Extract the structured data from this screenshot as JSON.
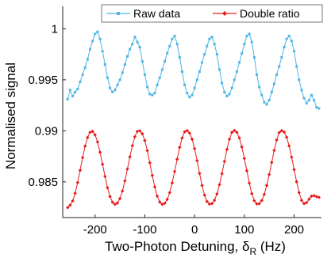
{
  "chart_data": {
    "type": "line",
    "title": "",
    "xlabel": "Two-Photon Detuning, δ",
    "xlabel_subscript": "R",
    "xlabel_unit": " (Hz)",
    "ylabel": "Normalised signal",
    "xlim": [
      -265,
      255
    ],
    "ylim": [
      0.9815,
      1.0022
    ],
    "xticks": [
      -200,
      -100,
      0,
      100,
      200
    ],
    "xtick_labels": [
      "-200",
      "-100",
      "0",
      "100",
      "200"
    ],
    "yticks": [
      0.985,
      0.99,
      0.995,
      1.0
    ],
    "ytick_labels": [
      "0.985",
      "0.99",
      "0.995",
      "1"
    ],
    "grid": false,
    "legend_position": "top-right",
    "x": [
      -255,
      -250,
      -245,
      -240,
      -235,
      -230,
      -225,
      -220,
      -215,
      -210,
      -205,
      -200,
      -195,
      -190,
      -185,
      -180,
      -175,
      -170,
      -165,
      -160,
      -155,
      -150,
      -145,
      -140,
      -135,
      -130,
      -125,
      -120,
      -115,
      -110,
      -105,
      -100,
      -95,
      -90,
      -85,
      -80,
      -75,
      -70,
      -65,
      -60,
      -55,
      -50,
      -45,
      -40,
      -35,
      -30,
      -25,
      -20,
      -15,
      -10,
      -5,
      0,
      5,
      10,
      15,
      20,
      25,
      30,
      35,
      40,
      45,
      50,
      55,
      60,
      65,
      70,
      75,
      80,
      85,
      90,
      95,
      100,
      105,
      110,
      115,
      120,
      125,
      130,
      135,
      140,
      145,
      150,
      155,
      160,
      165,
      170,
      175,
      180,
      185,
      190,
      195,
      200,
      205,
      210,
      215,
      220,
      225,
      230,
      235,
      240,
      245,
      250
    ],
    "series": [
      {
        "name": "Raw data",
        "color": "#4db6e6",
        "marker": "square",
        "values": [
          0.9931,
          0.994,
          0.9934,
          0.9938,
          0.9941,
          0.9948,
          0.9955,
          0.9962,
          0.997,
          0.998,
          0.9988,
          0.9995,
          0.9997,
          0.999,
          0.9978,
          0.9965,
          0.9952,
          0.9942,
          0.9938,
          0.994,
          0.9945,
          0.995,
          0.9957,
          0.9965,
          0.9973,
          0.998,
          0.9985,
          0.9992,
          0.9987,
          0.9982,
          0.9968,
          0.9955,
          0.9943,
          0.9936,
          0.9935,
          0.9937,
          0.9945,
          0.9952,
          0.996,
          0.9968,
          0.9976,
          0.9983,
          0.999,
          0.9993,
          0.9985,
          0.9972,
          0.9958,
          0.9945,
          0.9937,
          0.9933,
          0.9935,
          0.9942,
          0.995,
          0.9958,
          0.9967,
          0.9975,
          0.9983,
          0.999,
          0.9992,
          0.9985,
          0.9975,
          0.996,
          0.9947,
          0.9938,
          0.9934,
          0.9936,
          0.9942,
          0.995,
          0.9958,
          0.9967,
          0.9976,
          0.9985,
          0.9993,
          0.9995,
          0.9987,
          0.9972,
          0.9955,
          0.9943,
          0.9935,
          0.9928,
          0.9926,
          0.993,
          0.9938,
          0.9946,
          0.9955,
          0.9963,
          0.9972,
          0.9982,
          0.999,
          0.9993,
          0.9988,
          0.9978,
          0.9963,
          0.995,
          0.994,
          0.9932,
          0.9927,
          0.993,
          0.9935,
          0.993,
          0.9923,
          0.9922
        ]
      },
      {
        "name": "Double ratio",
        "color": "#e61b1b",
        "marker": "diamond",
        "values": [
          0.98248,
          0.98272,
          0.98313,
          0.98388,
          0.98493,
          0.98613,
          0.98738,
          0.9885,
          0.98935,
          0.98985,
          0.98995,
          0.98961,
          0.98891,
          0.98791,
          0.98673,
          0.98553,
          0.98443,
          0.98356,
          0.98301,
          0.9828,
          0.98293,
          0.98336,
          0.9841,
          0.9851,
          0.98625,
          0.98745,
          0.98855,
          0.98942,
          0.98995,
          0.99,
          0.98971,
          0.98905,
          0.98806,
          0.98687,
          0.98563,
          0.9845,
          0.9836,
          0.98303,
          0.9828,
          0.9829,
          0.98328,
          0.98395,
          0.9849,
          0.98602,
          0.98722,
          0.98838,
          0.9893,
          0.9899,
          0.99002,
          0.98978,
          0.98918,
          0.98825,
          0.98708,
          0.98583,
          0.98465,
          0.9837,
          0.98308,
          0.98282,
          0.98288,
          0.9832,
          0.98382,
          0.98472,
          0.9858,
          0.987,
          0.98818,
          0.98918,
          0.98985,
          0.99003,
          0.98985,
          0.9893,
          0.98842,
          0.9873,
          0.98608,
          0.98488,
          0.98385,
          0.98315,
          0.98284,
          0.98286,
          0.98317,
          0.98377,
          0.98465,
          0.98572,
          0.9869,
          0.98808,
          0.9891,
          0.98982,
          0.99002,
          0.98988,
          0.98937,
          0.98852,
          0.98742,
          0.9862,
          0.985,
          0.98395,
          0.9832,
          0.98287,
          0.98296,
          0.9833,
          0.9836,
          0.98365,
          0.98355,
          0.98348
        ]
      }
    ]
  }
}
